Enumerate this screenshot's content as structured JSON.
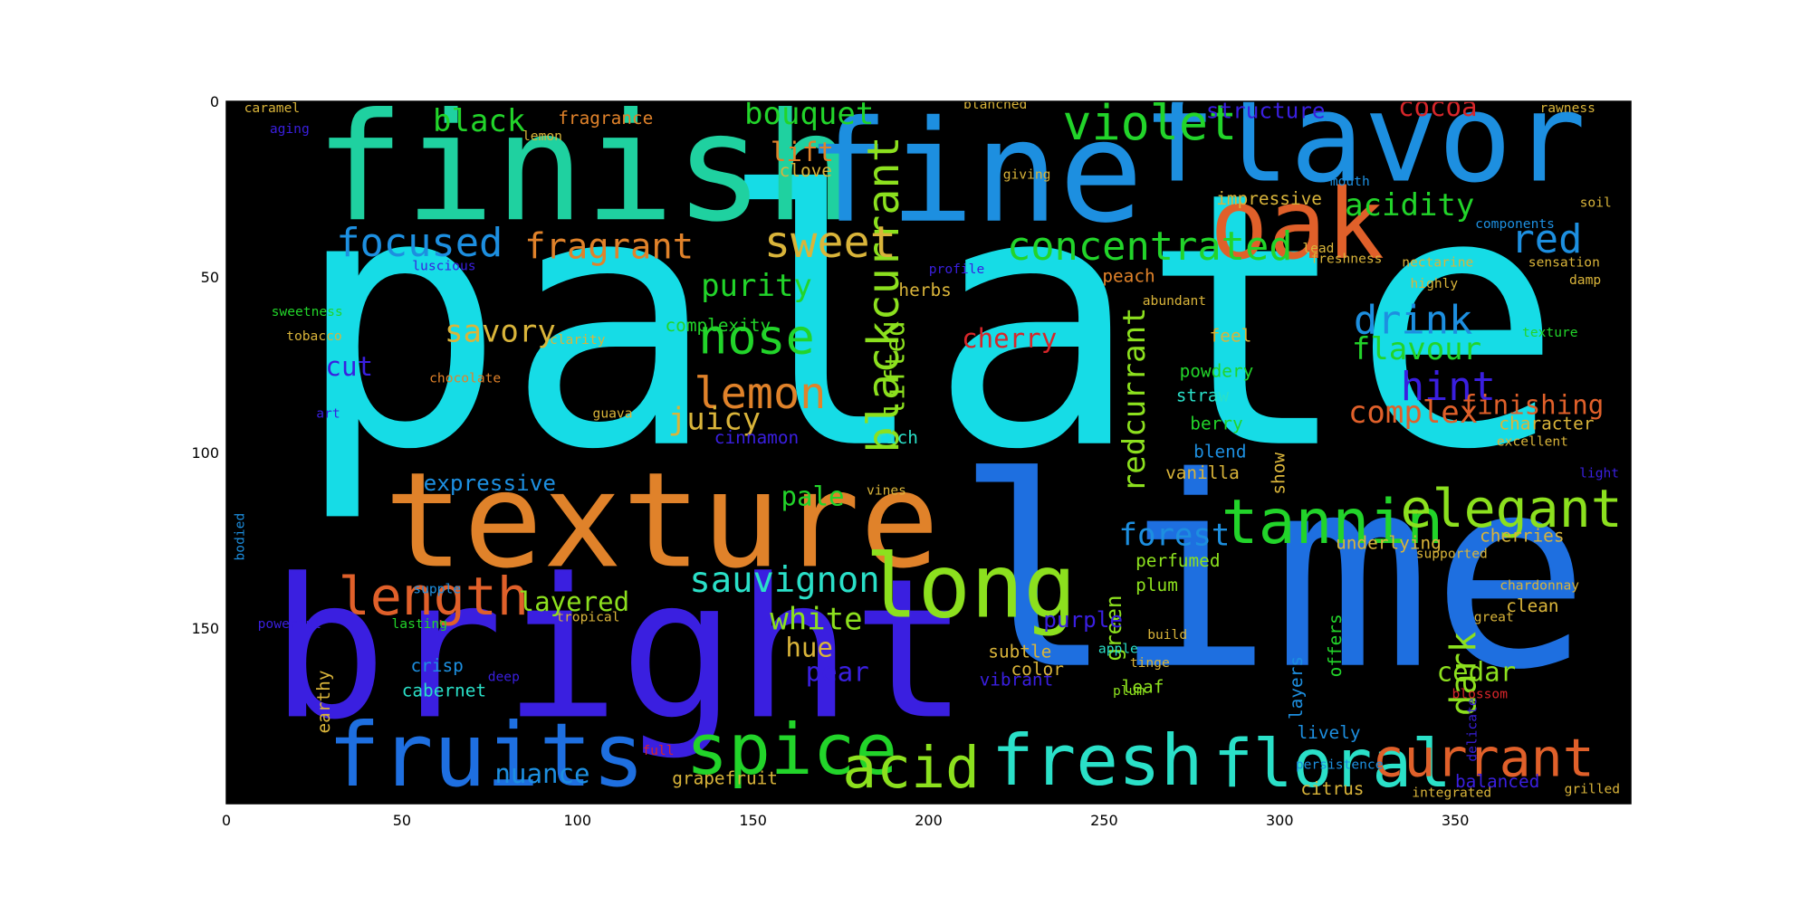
{
  "chart_data": {
    "type": "wordcloud",
    "title": "",
    "xlabel": "",
    "ylabel": "",
    "xlim": [
      0,
      400
    ],
    "ylim": [
      200,
      0
    ],
    "x_ticks": [
      0,
      50,
      100,
      150,
      200,
      250,
      300,
      350
    ],
    "y_ticks": [
      0,
      50,
      100,
      150
    ],
    "grid": false,
    "background": "#000000",
    "palette": {
      "cyan": "#16dce6",
      "teal": "#1fd1a0",
      "blue": "#1e6fe0",
      "skyblue": "#1d8fe0",
      "indigo": "#3a1fe0",
      "orange": "#e0822a",
      "darkorange": "#e0602a",
      "gold": "#d9b43a",
      "green": "#22d42a",
      "lime": "#8ce01e",
      "red": "#d7262a",
      "aqua": "#2ae0c8"
    },
    "words": [
      {
        "text": "palate",
        "x": 200,
        "y": 70,
        "size": 80,
        "color": "cyan"
      },
      {
        "text": "lime",
        "x": 298,
        "y": 140,
        "size": 60,
        "color": "blue"
      },
      {
        "text": "bright",
        "x": 112,
        "y": 160,
        "size": 44,
        "color": "indigo"
      },
      {
        "text": "finish",
        "x": 102,
        "y": 22,
        "size": 34,
        "color": "teal"
      },
      {
        "text": "fine",
        "x": 213,
        "y": 23,
        "size": 32,
        "color": "skyblue"
      },
      {
        "text": "flavor",
        "x": 324,
        "y": 13,
        "size": 28,
        "color": "skyblue"
      },
      {
        "text": "texture",
        "x": 124,
        "y": 122,
        "size": 30,
        "color": "orange"
      },
      {
        "text": "oak",
        "x": 305,
        "y": 37,
        "size": 22,
        "color": "darkorange"
      },
      {
        "text": "long",
        "x": 212,
        "y": 140,
        "size": 20,
        "color": "lime"
      },
      {
        "text": "fruits",
        "x": 74,
        "y": 188,
        "size": 20,
        "color": "blue"
      },
      {
        "text": "spice",
        "x": 161,
        "y": 186,
        "size": 16,
        "color": "green"
      },
      {
        "text": "fresh",
        "x": 248,
        "y": 189,
        "size": 16,
        "color": "aqua"
      },
      {
        "text": "floral",
        "x": 315,
        "y": 190,
        "size": 15,
        "color": "aqua"
      },
      {
        "text": "acid",
        "x": 195,
        "y": 191,
        "size": 13,
        "color": "lime"
      },
      {
        "text": "currant",
        "x": 358,
        "y": 188,
        "size": 12,
        "color": "darkorange"
      },
      {
        "text": "tannin",
        "x": 315,
        "y": 121,
        "size": 14,
        "color": "green"
      },
      {
        "text": "elegant",
        "x": 366,
        "y": 117,
        "size": 12,
        "color": "lime"
      },
      {
        "text": "length",
        "x": 59,
        "y": 142,
        "size": 12,
        "color": "darkorange"
      },
      {
        "text": "blackcurrant",
        "x": 188,
        "y": 55,
        "size": 10,
        "color": "lime",
        "rotate": true
      },
      {
        "text": "violet",
        "x": 263,
        "y": 7,
        "size": 11,
        "color": "green"
      },
      {
        "text": "focused",
        "x": 55,
        "y": 41,
        "size": 9,
        "color": "skyblue"
      },
      {
        "text": "fragrant",
        "x": 109,
        "y": 42,
        "size": 8,
        "color": "orange"
      },
      {
        "text": "sweet",
        "x": 172,
        "y": 41,
        "size": 10,
        "color": "gold"
      },
      {
        "text": "concentrated",
        "x": 263,
        "y": 42,
        "size": 9,
        "color": "green"
      },
      {
        "text": "red",
        "x": 376,
        "y": 40,
        "size": 9,
        "color": "skyblue"
      },
      {
        "text": "acidity",
        "x": 337,
        "y": 30,
        "size": 7,
        "color": "green"
      },
      {
        "text": "black",
        "x": 72,
        "y": 6,
        "size": 7,
        "color": "green"
      },
      {
        "text": "bouquet",
        "x": 166,
        "y": 4,
        "size": 7,
        "color": "green"
      },
      {
        "text": "cocoa",
        "x": 345,
        "y": 2,
        "size": 6,
        "color": "red"
      },
      {
        "text": "structure",
        "x": 296,
        "y": 3,
        "size": 5,
        "color": "indigo"
      },
      {
        "text": "lift",
        "x": 164,
        "y": 15,
        "size": 6,
        "color": "orange"
      },
      {
        "text": "fragrance",
        "x": 108,
        "y": 5,
        "size": 4,
        "color": "orange"
      },
      {
        "text": "clove",
        "x": 165,
        "y": 20,
        "size": 4,
        "color": "gold"
      },
      {
        "text": "nose",
        "x": 151,
        "y": 68,
        "size": 11,
        "color": "green"
      },
      {
        "text": "purity",
        "x": 151,
        "y": 53,
        "size": 7,
        "color": "green"
      },
      {
        "text": "lemon",
        "x": 152,
        "y": 84,
        "size": 10,
        "color": "orange"
      },
      {
        "text": "juicy",
        "x": 139,
        "y": 91,
        "size": 7,
        "color": "gold"
      },
      {
        "text": "savory",
        "x": 78,
        "y": 66,
        "size": 7,
        "color": "gold"
      },
      {
        "text": "cut",
        "x": 35,
        "y": 76,
        "size": 6,
        "color": "indigo"
      },
      {
        "text": "complexity",
        "x": 140,
        "y": 64,
        "size": 4,
        "color": "green"
      },
      {
        "text": "cinnamon",
        "x": 151,
        "y": 96,
        "size": 4,
        "color": "indigo"
      },
      {
        "text": "drink",
        "x": 338,
        "y": 63,
        "size": 9,
        "color": "skyblue"
      },
      {
        "text": "flavour",
        "x": 339,
        "y": 71,
        "size": 7,
        "color": "green"
      },
      {
        "text": "hint",
        "x": 348,
        "y": 82,
        "size": 9,
        "color": "indigo"
      },
      {
        "text": "complex",
        "x": 338,
        "y": 89,
        "size": 7,
        "color": "darkorange"
      },
      {
        "text": "finishing",
        "x": 372,
        "y": 87,
        "size": 6,
        "color": "darkorange"
      },
      {
        "text": "cherry",
        "x": 223,
        "y": 68,
        "size": 6,
        "color": "red"
      },
      {
        "text": "lifted",
        "x": 191,
        "y": 76,
        "size": 6,
        "color": "lime",
        "rotate": true
      },
      {
        "text": "redcurrant",
        "x": 259,
        "y": 85,
        "size": 7,
        "color": "lime",
        "rotate": true
      },
      {
        "text": "forest",
        "x": 270,
        "y": 124,
        "size": 7,
        "color": "skyblue"
      },
      {
        "text": "pale",
        "x": 167,
        "y": 113,
        "size": 6,
        "color": "green"
      },
      {
        "text": "sauvignon",
        "x": 159,
        "y": 137,
        "size": 8,
        "color": "aqua"
      },
      {
        "text": "layered",
        "x": 99,
        "y": 143,
        "size": 6,
        "color": "lime"
      },
      {
        "text": "white",
        "x": 168,
        "y": 148,
        "size": 7,
        "color": "lime"
      },
      {
        "text": "hue",
        "x": 166,
        "y": 156,
        "size": 6,
        "color": "gold"
      },
      {
        "text": "pear",
        "x": 174,
        "y": 163,
        "size": 6,
        "color": "indigo"
      },
      {
        "text": "dark",
        "x": 353,
        "y": 163,
        "size": 8,
        "color": "lime",
        "rotate": true
      },
      {
        "text": "cedar",
        "x": 356,
        "y": 163,
        "size": 6,
        "color": "lime"
      },
      {
        "text": "nuance",
        "x": 90,
        "y": 192,
        "size": 6,
        "color": "skyblue"
      },
      {
        "text": "green",
        "x": 253,
        "y": 150,
        "size": 5,
        "color": "lime",
        "rotate": true
      },
      {
        "text": "purple",
        "x": 244,
        "y": 148,
        "size": 5,
        "color": "indigo"
      },
      {
        "text": "plum",
        "x": 265,
        "y": 138,
        "size": 4,
        "color": "lime"
      },
      {
        "text": "perfumed",
        "x": 271,
        "y": 131,
        "size": 4,
        "color": "lime"
      },
      {
        "text": "subtle",
        "x": 226,
        "y": 157,
        "size": 4,
        "color": "gold"
      },
      {
        "text": "vibrant",
        "x": 225,
        "y": 165,
        "size": 4,
        "color": "indigo"
      },
      {
        "text": "crisp",
        "x": 60,
        "y": 161,
        "size": 4,
        "color": "skyblue"
      },
      {
        "text": "cabernet",
        "x": 62,
        "y": 168,
        "size": 4,
        "color": "aqua"
      },
      {
        "text": "earthy",
        "x": 28,
        "y": 171,
        "size": 4,
        "color": "gold",
        "rotate": true
      },
      {
        "text": "expressive",
        "x": 75,
        "y": 109,
        "size": 5,
        "color": "skyblue"
      },
      {
        "text": "vanilla",
        "x": 278,
        "y": 106,
        "size": 4,
        "color": "gold"
      },
      {
        "text": "berry",
        "x": 282,
        "y": 92,
        "size": 4,
        "color": "green"
      },
      {
        "text": "show",
        "x": 300,
        "y": 106,
        "size": 4,
        "color": "gold",
        "rotate": true
      },
      {
        "text": "straw",
        "x": 278,
        "y": 84,
        "size": 4,
        "color": "aqua"
      },
      {
        "text": "powdery",
        "x": 282,
        "y": 77,
        "size": 4,
        "color": "green"
      },
      {
        "text": "peach",
        "x": 257,
        "y": 50,
        "size": 4,
        "color": "orange"
      },
      {
        "text": "impressive",
        "x": 297,
        "y": 28,
        "size": 4,
        "color": "gold"
      },
      {
        "text": "rich",
        "x": 191,
        "y": 96,
        "size": 4,
        "color": "aqua"
      },
      {
        "text": "herbs",
        "x": 199,
        "y": 54,
        "size": 4,
        "color": "gold"
      },
      {
        "text": "feel",
        "x": 286,
        "y": 67,
        "size": 4,
        "color": "gold"
      },
      {
        "text": "blend",
        "x": 283,
        "y": 100,
        "size": 4,
        "color": "skyblue"
      },
      {
        "text": "character",
        "x": 376,
        "y": 92,
        "size": 4,
        "color": "gold"
      },
      {
        "text": "texture",
        "x": 377,
        "y": 66,
        "size": 3,
        "color": "green"
      },
      {
        "text": "underlying",
        "x": 331,
        "y": 126,
        "size": 4,
        "color": "gold"
      },
      {
        "text": "cherries",
        "x": 369,
        "y": 124,
        "size": 4,
        "color": "gold"
      },
      {
        "text": "clean",
        "x": 372,
        "y": 144,
        "size": 4,
        "color": "gold"
      },
      {
        "text": "layers",
        "x": 305,
        "y": 167,
        "size": 4,
        "color": "skyblue",
        "rotate": true
      },
      {
        "text": "offers",
        "x": 316,
        "y": 155,
        "size": 4,
        "color": "green",
        "rotate": true
      },
      {
        "text": "lively",
        "x": 314,
        "y": 180,
        "size": 4,
        "color": "skyblue"
      },
      {
        "text": "citrus",
        "x": 315,
        "y": 196,
        "size": 4,
        "color": "gold"
      },
      {
        "text": "grapefruit",
        "x": 142,
        "y": 193,
        "size": 4,
        "color": "gold"
      },
      {
        "text": "color",
        "x": 231,
        "y": 162,
        "size": 4,
        "color": "gold"
      },
      {
        "text": "leaf",
        "x": 261,
        "y": 167,
        "size": 4,
        "color": "lime"
      },
      {
        "text": "freshness",
        "x": 319,
        "y": 45,
        "size": 3,
        "color": "gold"
      },
      {
        "text": "lead",
        "x": 311,
        "y": 42,
        "size": 3,
        "color": "gold"
      },
      {
        "text": "luscious",
        "x": 62,
        "y": 47,
        "size": 3,
        "color": "indigo"
      },
      {
        "text": "caramel",
        "x": 13,
        "y": 2,
        "size": 3,
        "color": "gold"
      },
      {
        "text": "tobacco",
        "x": 25,
        "y": 67,
        "size": 3,
        "color": "gold"
      },
      {
        "text": "chocolate",
        "x": 68,
        "y": 79,
        "size": 3,
        "color": "orange"
      },
      {
        "text": "clarity",
        "x": 100,
        "y": 68,
        "size": 3,
        "color": "gold"
      },
      {
        "text": "art",
        "x": 29,
        "y": 89,
        "size": 3,
        "color": "indigo"
      },
      {
        "text": "guava",
        "x": 110,
        "y": 89,
        "size": 3,
        "color": "gold"
      },
      {
        "text": "supple",
        "x": 60,
        "y": 139,
        "size": 3,
        "color": "skyblue"
      },
      {
        "text": "powerful",
        "x": 18,
        "y": 149,
        "size": 3,
        "color": "indigo"
      },
      {
        "text": "tropical",
        "x": 103,
        "y": 147,
        "size": 3,
        "color": "gold"
      },
      {
        "text": "lasting",
        "x": 55,
        "y": 149,
        "size": 3,
        "color": "green"
      },
      {
        "text": "bodied",
        "x": 4,
        "y": 124,
        "size": 3,
        "color": "skyblue",
        "rotate": true
      },
      {
        "text": "full",
        "x": 123,
        "y": 185,
        "size": 3,
        "color": "red"
      },
      {
        "text": "deep",
        "x": 79,
        "y": 164,
        "size": 3,
        "color": "indigo"
      },
      {
        "text": "balanced",
        "x": 362,
        "y": 194,
        "size": 4,
        "color": "indigo"
      },
      {
        "text": "grilled",
        "x": 389,
        "y": 196,
        "size": 3,
        "color": "gold"
      },
      {
        "text": "blossom",
        "x": 357,
        "y": 169,
        "size": 3,
        "color": "red"
      },
      {
        "text": "chardonnay",
        "x": 374,
        "y": 138,
        "size": 3,
        "color": "gold"
      },
      {
        "text": "great",
        "x": 361,
        "y": 147,
        "size": 3,
        "color": "gold"
      },
      {
        "text": "excellent",
        "x": 372,
        "y": 97,
        "size": 3,
        "color": "gold"
      },
      {
        "text": "sensation",
        "x": 381,
        "y": 46,
        "size": 3,
        "color": "gold"
      },
      {
        "text": "nectarine",
        "x": 345,
        "y": 46,
        "size": 3,
        "color": "gold"
      },
      {
        "text": "components",
        "x": 367,
        "y": 35,
        "size": 3,
        "color": "skyblue"
      },
      {
        "text": "rawness",
        "x": 382,
        "y": 2,
        "size": 3,
        "color": "gold"
      },
      {
        "text": "aging",
        "x": 18,
        "y": 8,
        "size": 3,
        "color": "indigo"
      },
      {
        "text": "lemon",
        "x": 90,
        "y": 10,
        "size": 3,
        "color": "gold"
      },
      {
        "text": "sweetness",
        "x": 23,
        "y": 60,
        "size": 3,
        "color": "green"
      },
      {
        "text": "giving",
        "x": 228,
        "y": 21,
        "size": 3,
        "color": "gold"
      },
      {
        "text": "blanched",
        "x": 219,
        "y": 1,
        "size": 3,
        "color": "gold"
      },
      {
        "text": "profile",
        "x": 208,
        "y": 48,
        "size": 3,
        "color": "indigo"
      },
      {
        "text": "abundant",
        "x": 270,
        "y": 57,
        "size": 3,
        "color": "gold"
      },
      {
        "text": "mouth",
        "x": 320,
        "y": 23,
        "size": 3,
        "color": "skyblue"
      },
      {
        "text": "highly",
        "x": 344,
        "y": 52,
        "size": 3,
        "color": "gold"
      },
      {
        "text": "damp",
        "x": 387,
        "y": 51,
        "size": 3,
        "color": "gold"
      },
      {
        "text": "soil",
        "x": 390,
        "y": 29,
        "size": 3,
        "color": "gold"
      },
      {
        "text": "light",
        "x": 391,
        "y": 106,
        "size": 3,
        "color": "indigo"
      },
      {
        "text": "plum",
        "x": 257,
        "y": 168,
        "size": 3,
        "color": "lime"
      },
      {
        "text": "vines",
        "x": 188,
        "y": 111,
        "size": 3,
        "color": "gold"
      },
      {
        "text": "supported",
        "x": 349,
        "y": 129,
        "size": 3,
        "color": "gold"
      },
      {
        "text": "delicate",
        "x": 355,
        "y": 179,
        "size": 3,
        "color": "indigo",
        "rotate": true
      },
      {
        "text": "integrated",
        "x": 349,
        "y": 197,
        "size": 3,
        "color": "gold"
      },
      {
        "text": "persistence",
        "x": 317,
        "y": 189,
        "size": 3,
        "color": "skyblue"
      },
      {
        "text": "apple",
        "x": 254,
        "y": 156,
        "size": 3,
        "color": "aqua"
      },
      {
        "text": "build",
        "x": 268,
        "y": 152,
        "size": 3,
        "color": "gold"
      },
      {
        "text": "tinge",
        "x": 263,
        "y": 160,
        "size": 3,
        "color": "gold"
      }
    ]
  }
}
